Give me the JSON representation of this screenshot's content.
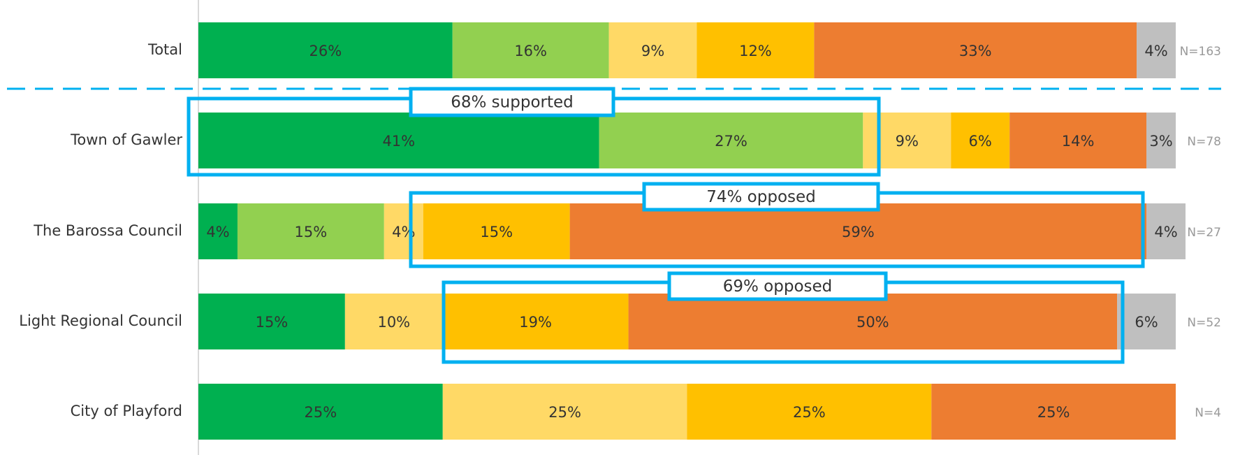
{
  "chart_data": {
    "type": "stacked_bar_horizontal",
    "categories": [
      "Total",
      "Town of Gawler",
      "The Barossa Council",
      "Light Regional Council",
      "City of Playford"
    ],
    "series": [
      {
        "color": "#00b050",
        "values": [
          26,
          41,
          4,
          15,
          25
        ],
        "value_labels": [
          "26%",
          "41%",
          "4%",
          "15%",
          "25%"
        ]
      },
      {
        "color": "#92d050",
        "values": [
          16,
          27,
          15,
          null,
          null
        ],
        "value_labels": [
          "16%",
          "27%",
          "15%",
          null,
          null
        ]
      },
      {
        "color": "#ffd966",
        "values": [
          9,
          9,
          4,
          10,
          25
        ],
        "value_labels": [
          "9%",
          "9%",
          "4%",
          "10%",
          "25%"
        ]
      },
      {
        "color": "#ffc000",
        "values": [
          12,
          6,
          15,
          19,
          25
        ],
        "value_labels": [
          "12%",
          "6%",
          "15%",
          "19%",
          "25%"
        ]
      },
      {
        "color": "#ed7d31",
        "values": [
          33,
          14,
          59,
          50,
          25
        ],
        "value_labels": [
          "33%",
          "14%",
          "59%",
          "50%",
          "25%"
        ]
      },
      {
        "color": "#bfbfbf",
        "values": [
          4,
          3,
          4,
          6,
          null
        ],
        "value_labels": [
          "4%",
          "3%",
          "4%",
          "6%",
          null
        ]
      }
    ],
    "n_labels": [
      "N=163",
      "N=78",
      "N=27",
      "N=52",
      "N=4"
    ],
    "annotations": [
      "68% supported",
      "74% opposed",
      "69% opposed"
    ],
    "xlim": [
      0,
      100
    ]
  }
}
